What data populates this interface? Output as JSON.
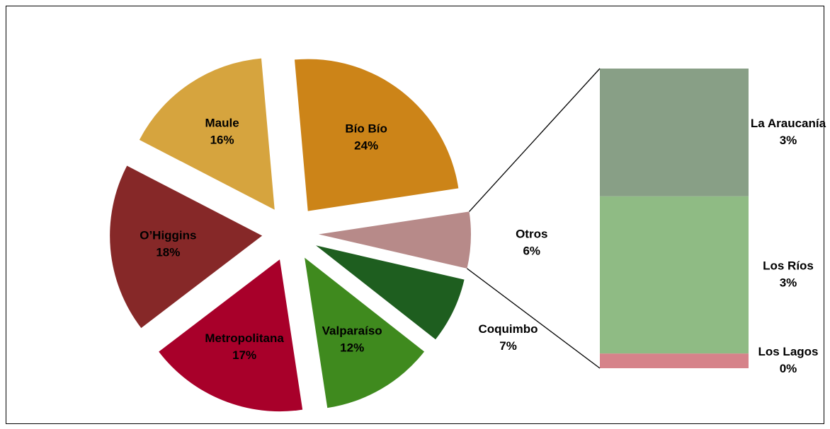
{
  "chart_data": {
    "type": "pie-of-bar",
    "categories": [
      "Coquimbo",
      "Valparaíso",
      "Metropolitana",
      "O’Higgins",
      "Maule",
      "Bío Bío",
      "Otros"
    ],
    "values": [
      7,
      12,
      17,
      18,
      16,
      24,
      6
    ],
    "value_labels": [
      "7%",
      "12%",
      "17%",
      "18%",
      "16%",
      "24%",
      "6%"
    ],
    "colors": [
      "#1e5e1f",
      "#3f8a1e",
      "#a8002a",
      "#862828",
      "#d6a43e",
      "#cc8418",
      "#b78a89"
    ],
    "bar": {
      "categories": [
        "Los Lagos",
        "Los Ríos",
        "La Araucanía"
      ],
      "values": [
        0.3,
        3.2,
        2.6
      ],
      "value_labels": [
        "0%",
        "3%",
        "3%"
      ],
      "colors": [
        "#d6838a",
        "#8fbb84",
        "#889f86"
      ]
    }
  }
}
